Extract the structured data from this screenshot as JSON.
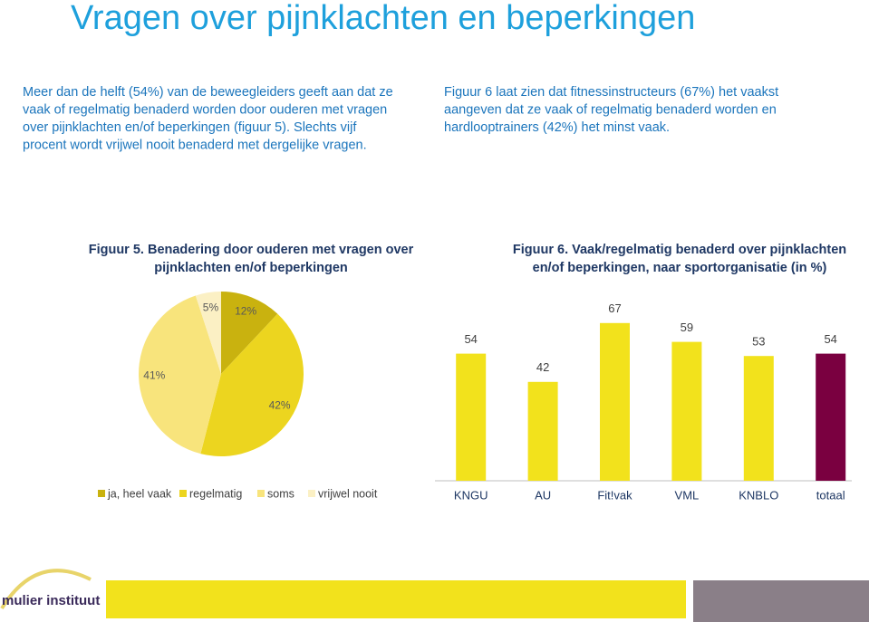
{
  "title": "Vragen over pijnklachten en beperkingen",
  "intro_left": [
    "Meer dan de helft (54%) van de beweegleiders geeft aan dat ze",
    "vaak of regelmatig benaderd worden door ouderen met vragen",
    "over pijnklachten en/of beperkingen (figuur 5). Slechts vijf",
    "procent wordt vrijwel nooit benaderd met dergelijke vragen."
  ],
  "intro_right": [
    "Figuur 6 laat zien dat fitnessinstructeurs (67%) het vaakst",
    "aangeven dat ze vaak of regelmatig benaderd worden en",
    "hardlooptrainers (42%) het minst vaak."
  ],
  "chart_data": [
    {
      "type": "pie",
      "title": [
        "Figuur 5. Benadering door ouderen met vragen over",
        "pijnklachten en/of beperkingen"
      ],
      "categories": [
        "ja, heel vaak",
        "regelmatig",
        "soms",
        "vrijwel nooit"
      ],
      "values": [
        12,
        42,
        41,
        5
      ],
      "value_labels": [
        "12%",
        "42%",
        "41%",
        "5%"
      ],
      "colors": [
        "#c9b20f",
        "#ecd51f",
        "#f8e47c",
        "#fbf0c4"
      ]
    },
    {
      "type": "bar",
      "title": [
        "Figuur 6. Vaak/regelmatig benaderd over pijnklachten",
        "en/of beperkingen, naar sportorganisatie (in %)"
      ],
      "categories": [
        "KNGU",
        "AU",
        "Fit!vak",
        "VML",
        "KNBLO",
        "totaal"
      ],
      "values": [
        54,
        42,
        67,
        59,
        53,
        54
      ],
      "colors": [
        "#f2e21c",
        "#f2e21c",
        "#f2e21c",
        "#f2e21c",
        "#f2e21c",
        "#7a0040"
      ]
    }
  ],
  "logo": "mulier instituut"
}
